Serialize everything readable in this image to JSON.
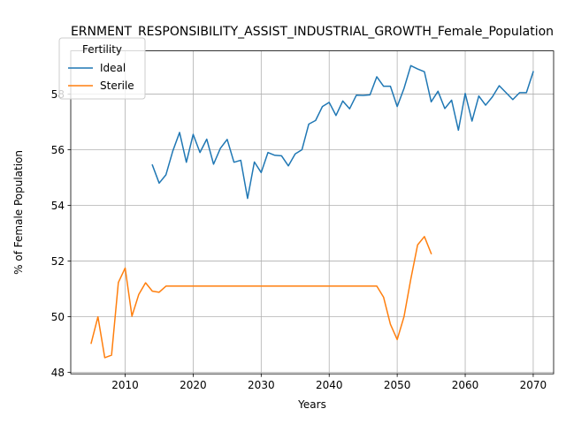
{
  "chart_data": {
    "type": "line",
    "title": "ERNMENT_RESPONSIBILITY_ASSIST_INDUSTRIAL_GROWTH_Female_Population",
    "xlabel": "Years",
    "ylabel": "% of Female Population",
    "xlim": [
      2002,
      2073
    ],
    "ylim": [
      47.95,
      59.55
    ],
    "xticks": [
      2010,
      2020,
      2030,
      2040,
      2050,
      2060,
      2070
    ],
    "yticks": [
      48,
      50,
      52,
      54,
      56,
      58
    ],
    "grid": true,
    "legend": {
      "title": "Fertility",
      "position": "top-left"
    },
    "series": [
      {
        "name": "Ideal",
        "color": "#1f77b4",
        "x": [
          2014,
          2015,
          2016,
          2017,
          2018,
          2019,
          2020,
          2021,
          2022,
          2023,
          2024,
          2025,
          2026,
          2027,
          2028,
          2029,
          2030,
          2031,
          2032,
          2033,
          2034,
          2035,
          2036,
          2037,
          2038,
          2039,
          2040,
          2041,
          2042,
          2043,
          2044,
          2045,
          2046,
          2047,
          2048,
          2049,
          2050,
          2051,
          2052,
          2053,
          2054,
          2055,
          2056,
          2057,
          2058,
          2059,
          2060,
          2061,
          2062,
          2063,
          2064,
          2065,
          2066,
          2067,
          2068,
          2069,
          2070
        ],
        "y": [
          55.45,
          54.8,
          55.1,
          55.95,
          56.62,
          55.55,
          56.55,
          55.9,
          56.38,
          55.48,
          56.05,
          56.37,
          55.55,
          55.62,
          54.25,
          55.56,
          55.18,
          55.9,
          55.8,
          55.78,
          55.42,
          55.85,
          56.0,
          56.92,
          57.05,
          57.55,
          57.7,
          57.23,
          57.75,
          57.47,
          57.96,
          57.95,
          57.97,
          58.62,
          58.28,
          58.28,
          57.55,
          58.2,
          59.02,
          58.9,
          58.8,
          57.72,
          58.1,
          57.48,
          57.78,
          56.7,
          58.02,
          57.03,
          57.93,
          57.6,
          57.9,
          58.3,
          58.05,
          57.8,
          58.05,
          58.05,
          58.8
        ]
      },
      {
        "name": "Sterile",
        "color": "#ff7f0e",
        "x": [
          2005,
          2006,
          2007,
          2008,
          2009,
          2010,
          2011,
          2012,
          2013,
          2014,
          2015,
          2016,
          2017,
          2018,
          2019,
          2020,
          2021,
          2022,
          2023,
          2024,
          2025,
          2026,
          2027,
          2028,
          2029,
          2030,
          2031,
          2032,
          2033,
          2034,
          2035,
          2036,
          2037,
          2038,
          2039,
          2040,
          2041,
          2042,
          2043,
          2044,
          2045,
          2046,
          2047,
          2048,
          2049,
          2050,
          2051,
          2052,
          2053,
          2054,
          2055
        ],
        "y": [
          49.05,
          50.0,
          48.53,
          48.62,
          51.23,
          51.75,
          50.02,
          50.8,
          51.22,
          50.92,
          50.88,
          51.1,
          51.1,
          51.1,
          51.1,
          51.1,
          51.1,
          51.1,
          51.1,
          51.1,
          51.1,
          51.1,
          51.1,
          51.1,
          51.1,
          51.1,
          51.1,
          51.1,
          51.1,
          51.1,
          51.1,
          51.1,
          51.1,
          51.1,
          51.1,
          51.1,
          51.1,
          51.1,
          51.1,
          51.1,
          51.1,
          51.1,
          51.1,
          50.7,
          49.73,
          49.18,
          50.0,
          51.35,
          52.58,
          52.88,
          52.27
        ]
      }
    ]
  }
}
